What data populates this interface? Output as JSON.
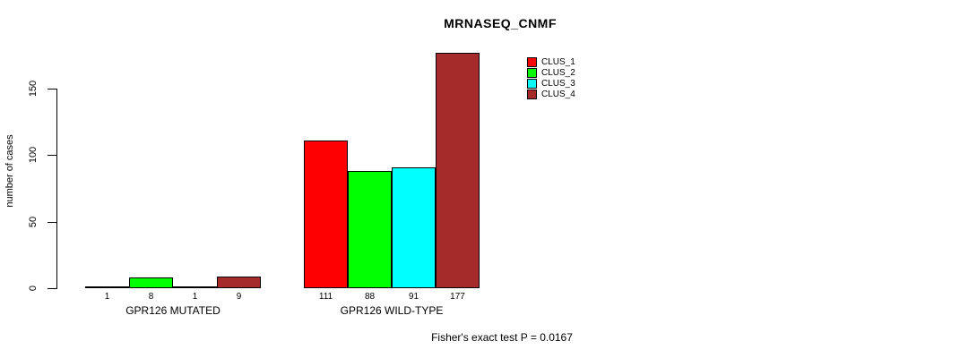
{
  "chart_data": {
    "type": "bar",
    "title": "MRNASEQ_CNMF",
    "ylabel": "number of cases",
    "ylim": [
      0,
      150
    ],
    "yticks": [
      0,
      50,
      100,
      150
    ],
    "grid": false,
    "legend_position": "top-right",
    "categories": [
      "GPR126 MUTATED",
      "GPR126 WILD-TYPE"
    ],
    "series": [
      {
        "name": "CLUS_1",
        "color": "#FF0000",
        "values": [
          1,
          111
        ]
      },
      {
        "name": "CLUS_2",
        "color": "#00FF00",
        "values": [
          8,
          88
        ]
      },
      {
        "name": "CLUS_3",
        "color": "#00FFFF",
        "values": [
          1,
          91
        ]
      },
      {
        "name": "CLUS_4",
        "color": "#A52A2A",
        "values": [
          9,
          177
        ]
      }
    ],
    "bar_value_labels": true,
    "annotation": "Fisher's exact test P = 0.0167",
    "axis_color": "#000000",
    "background_color": "#FFFFFF"
  }
}
